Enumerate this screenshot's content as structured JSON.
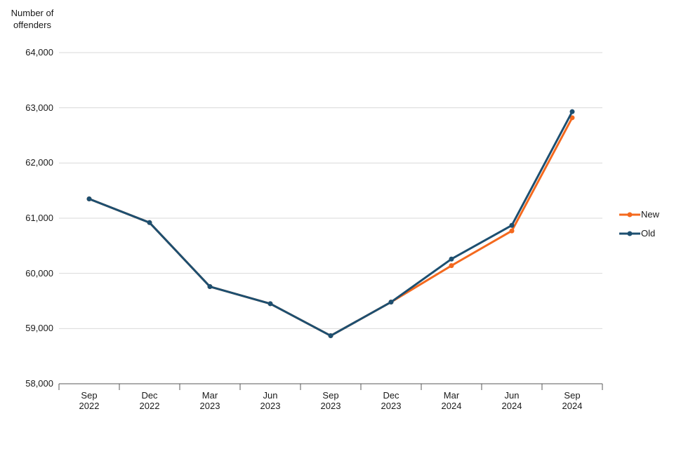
{
  "chart_data": {
    "type": "line",
    "y_axis_title": "Number of\noffenders",
    "categories": [
      "Sep\n2022",
      "Dec\n2022",
      "Mar\n2023",
      "Jun\n2023",
      "Sep\n2023",
      "Dec\n2023",
      "Mar\n2024",
      "Jun\n2024",
      "Sep\n2024"
    ],
    "series": [
      {
        "name": "New",
        "color": "#f4691e",
        "values": [
          61350,
          60920,
          59760,
          59450,
          58870,
          59480,
          60140,
          60770,
          62820
        ]
      },
      {
        "name": "Old",
        "color": "#1d4f70",
        "values": [
          61350,
          60920,
          59760,
          59450,
          58870,
          59480,
          60260,
          60870,
          62930
        ]
      }
    ],
    "y_ticks": [
      {
        "value": 64000,
        "label": "64,000"
      },
      {
        "value": 63000,
        "label": "63,000"
      },
      {
        "value": 62000,
        "label": "62,000"
      },
      {
        "value": 61000,
        "label": "61,000"
      },
      {
        "value": 60000,
        "label": "60,000"
      },
      {
        "value": 59000,
        "label": "59,000"
      },
      {
        "value": 58000,
        "label": "58,000"
      }
    ],
    "ylim": [
      58000,
      64000
    ],
    "grid": true,
    "legend_position": "right",
    "colors": {
      "grid": "#d9d9d9",
      "axis": "#595959",
      "text": "#1a1a1a"
    }
  }
}
